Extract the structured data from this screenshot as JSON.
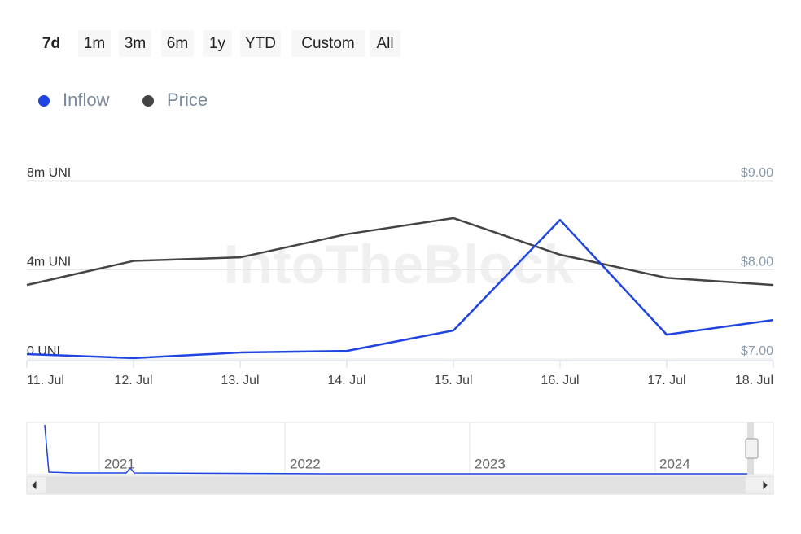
{
  "range_selector": {
    "buttons": [
      "7d",
      "1m",
      "3m",
      "6m",
      "1y",
      "YTD",
      "Custom",
      "All"
    ],
    "selected": 0
  },
  "watermark": "IntoTheBlock",
  "navigator": {
    "years": [
      "2021",
      "2022",
      "2023",
      "2024"
    ]
  },
  "chart_data": {
    "type": "line",
    "categories": [
      "11. Jul",
      "12. Jul",
      "13. Jul",
      "14. Jul",
      "15. Jul",
      "16. Jul",
      "17. Jul",
      "18. Jul"
    ],
    "series": [
      {
        "name": "Inflow",
        "color": "#1f44e0",
        "values": [
          220000,
          40000,
          290000,
          360000,
          1280000,
          6240000,
          1090000,
          1750000
        ]
      },
      {
        "name": "Price",
        "color": "#444444",
        "axis": "y2",
        "values": [
          7.83,
          8.1,
          8.14,
          8.4,
          8.58,
          8.17,
          7.91,
          7.83
        ]
      }
    ],
    "ylim": [
      0,
      8000000
    ],
    "yticks": [
      {
        "value": 0,
        "label": "0 UNI"
      },
      {
        "value": 4000000,
        "label": "4m UNI"
      },
      {
        "value": 8000000,
        "label": "8m UNI"
      }
    ],
    "y2lim": [
      7,
      9
    ],
    "y2ticks": [
      {
        "value": 7,
        "label": "$7.00"
      },
      {
        "value": 8,
        "label": "$8.00"
      },
      {
        "value": 9,
        "label": "$9.00"
      }
    ],
    "grid": true
  }
}
